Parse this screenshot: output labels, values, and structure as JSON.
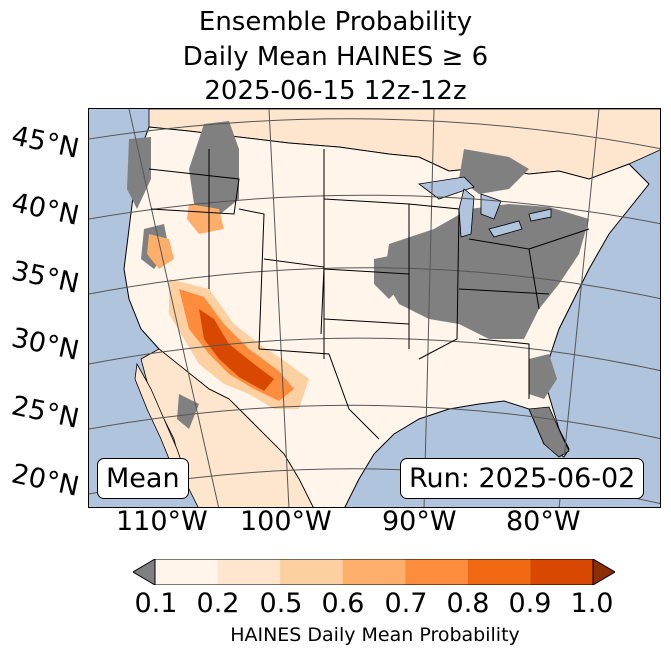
{
  "title": {
    "line1": "Ensemble Probability",
    "line2": "Daily Mean HAINES ≥ 6",
    "line3": "2025-06-15 12z-12z"
  },
  "lat_labels": [
    "45°N",
    "40°N",
    "35°N",
    "30°N",
    "25°N",
    "20°N"
  ],
  "lon_labels": [
    "110°W",
    "100°W",
    "90°W",
    "80°W"
  ],
  "stat_label": "Mean",
  "run_label": "Run: 2025-06-02",
  "colorbar": {
    "ticks": [
      "0.1",
      "0.2",
      "0.5",
      "0.6",
      "0.7",
      "0.8",
      "0.9",
      "1.0"
    ],
    "label": "HAINES Daily Mean Probability",
    "colors": [
      "#fff5eb",
      "#fee6ce",
      "#fdd0a2",
      "#fdae6b",
      "#fd8d3c",
      "#f16913",
      "#d94801",
      "#8c2d04"
    ],
    "under_color": "#808080"
  },
  "map_colors": {
    "ocean": "#b0c4de",
    "land": "#fff5eb",
    "missing": "#808080"
  }
}
